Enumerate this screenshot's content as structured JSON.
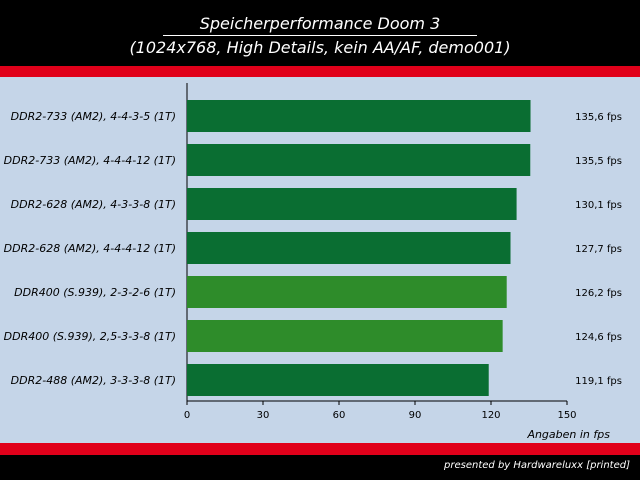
{
  "header": {
    "title": "Speicherperformance Doom 3",
    "subtitle": "(1024x768, High Details, kein AA/AF, demo001)"
  },
  "footer": {
    "text": "presented by Hardwareluxx [printed]"
  },
  "colors": {
    "dark_green": "#0a6e32",
    "light_green": "#2e8c2a",
    "red": "#e0001a",
    "background": "#c5d5e8"
  },
  "chart_data": {
    "type": "bar",
    "orientation": "horizontal",
    "title": "Speicherperformance Doom 3",
    "subtitle": "(1024x768, High Details, kein AA/AF, demo001)",
    "xlabel": "Angaben in fps",
    "xlim": [
      0,
      150
    ],
    "xticks": [
      0,
      30,
      60,
      90,
      120,
      150
    ],
    "grid": false,
    "categories": [
      "DDR2-733 (AM2), 4-4-3-5 (1T)",
      "DDR2-733 (AM2), 4-4-4-12 (1T)",
      "DDR2-628 (AM2), 4-3-3-8 (1T)",
      "DDR2-628 (AM2), 4-4-4-12 (1T)",
      "DDR400 (S.939), 2-3-2-6 (1T)",
      "DDR400 (S.939), 2,5-3-3-8 (1T)",
      "DDR2-488 (AM2), 3-3-3-8 (1T)"
    ],
    "values": [
      135.6,
      135.5,
      130.1,
      127.7,
      126.2,
      124.6,
      119.1
    ],
    "value_labels": [
      "135,6 fps",
      "135,5 fps",
      "130,1 fps",
      "127,7 fps",
      "126,2 fps",
      "124,6 fps",
      "119,1 fps"
    ],
    "bar_colors": [
      "#0a6e32",
      "#0a6e32",
      "#0a6e32",
      "#0a6e32",
      "#2e8c2a",
      "#2e8c2a",
      "#0a6e32"
    ]
  }
}
